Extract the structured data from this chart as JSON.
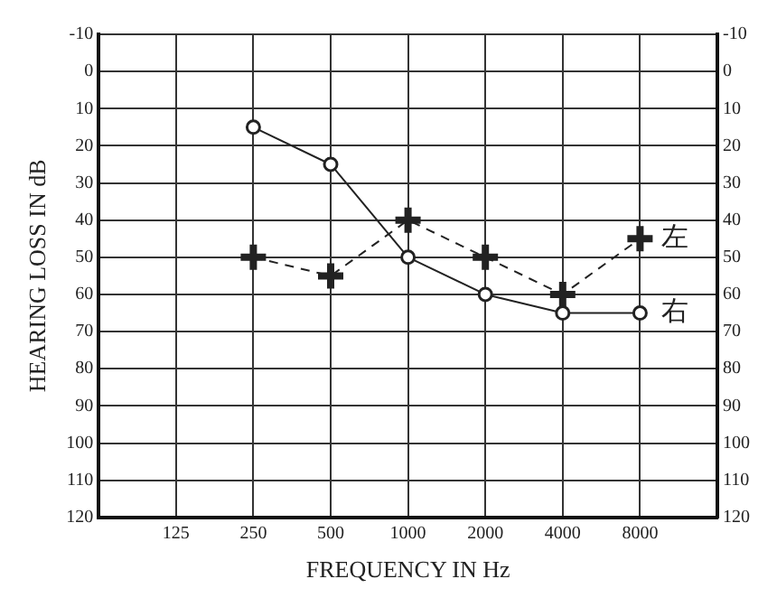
{
  "chart_data": {
    "type": "line",
    "xlabel": "FREQUENCY IN Hz",
    "ylabel": "HEARING LOSS IN dB",
    "log": "x",
    "x": [
      250,
      500,
      1000,
      2000,
      4000,
      8000
    ],
    "xlim": [
      62.5,
      16000
    ],
    "xticks": [
      125,
      250,
      500,
      1000,
      2000,
      4000,
      8000
    ],
    "ylim": [
      120,
      -10
    ],
    "yticks": [
      -10,
      0,
      10,
      20,
      30,
      40,
      50,
      60,
      70,
      80,
      90,
      100,
      110,
      120
    ],
    "y2lim": [
      120,
      -10
    ],
    "y2ticks": [
      -10,
      0,
      10,
      20,
      30,
      40,
      50,
      60,
      70,
      80,
      90,
      100,
      110,
      120
    ],
    "grid": true,
    "legend": false,
    "series": [
      {
        "name": "右",
        "color": "#222222",
        "marker": "circle",
        "line_style": "solid",
        "values": [
          15,
          25,
          50,
          60,
          65,
          65
        ]
      },
      {
        "name": "左",
        "color": "#222222",
        "marker": "cross",
        "line_style": "dashed",
        "values": [
          50,
          55,
          40,
          50,
          60,
          45
        ]
      }
    ]
  }
}
